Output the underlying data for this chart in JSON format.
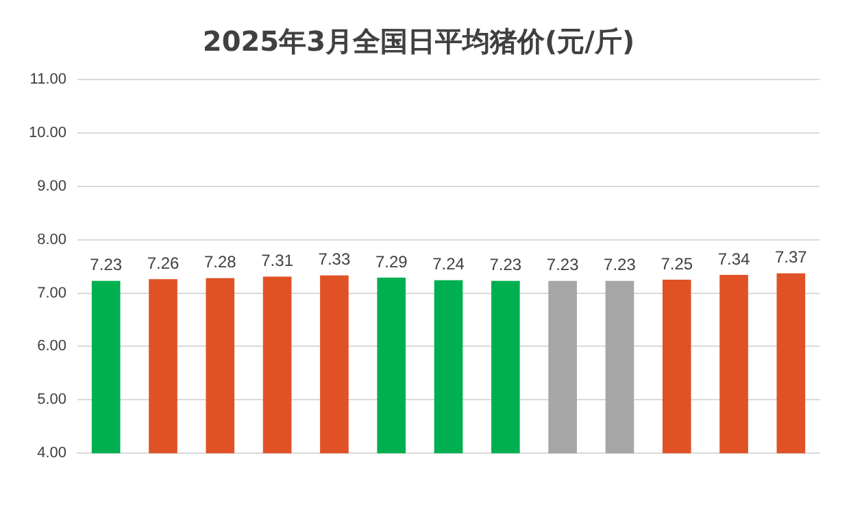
{
  "chart_data": {
    "type": "bar",
    "title": "2025年3月全国日平均猪价(元/斤)",
    "categories": [
      null,
      null,
      null,
      null,
      null,
      null,
      null,
      null,
      null,
      null,
      null,
      null,
      null
    ],
    "values": [
      7.23,
      7.26,
      7.28,
      7.31,
      7.33,
      7.29,
      7.24,
      7.23,
      7.23,
      7.23,
      7.25,
      7.34,
      7.37
    ],
    "colors": [
      "#00b050",
      "#e05226",
      "#e05226",
      "#e05226",
      "#e05226",
      "#00b050",
      "#00b050",
      "#00b050",
      "#a6a6a6",
      "#a6a6a6",
      "#e05226",
      "#e05226",
      "#e05226"
    ],
    "ylim": [
      4,
      11
    ],
    "yticks": [
      {
        "value": 4,
        "label": "4.00"
      },
      {
        "value": 5,
        "label": "5.00"
      },
      {
        "value": 6,
        "label": "6.00"
      },
      {
        "value": 7,
        "label": "7.00"
      },
      {
        "value": 8,
        "label": "8.00"
      },
      {
        "value": 9,
        "label": "9.00"
      },
      {
        "value": 10,
        "label": "10.00"
      },
      {
        "value": 11,
        "label": "11.00"
      }
    ],
    "grid": "y",
    "legend": false,
    "data_labels": true
  }
}
